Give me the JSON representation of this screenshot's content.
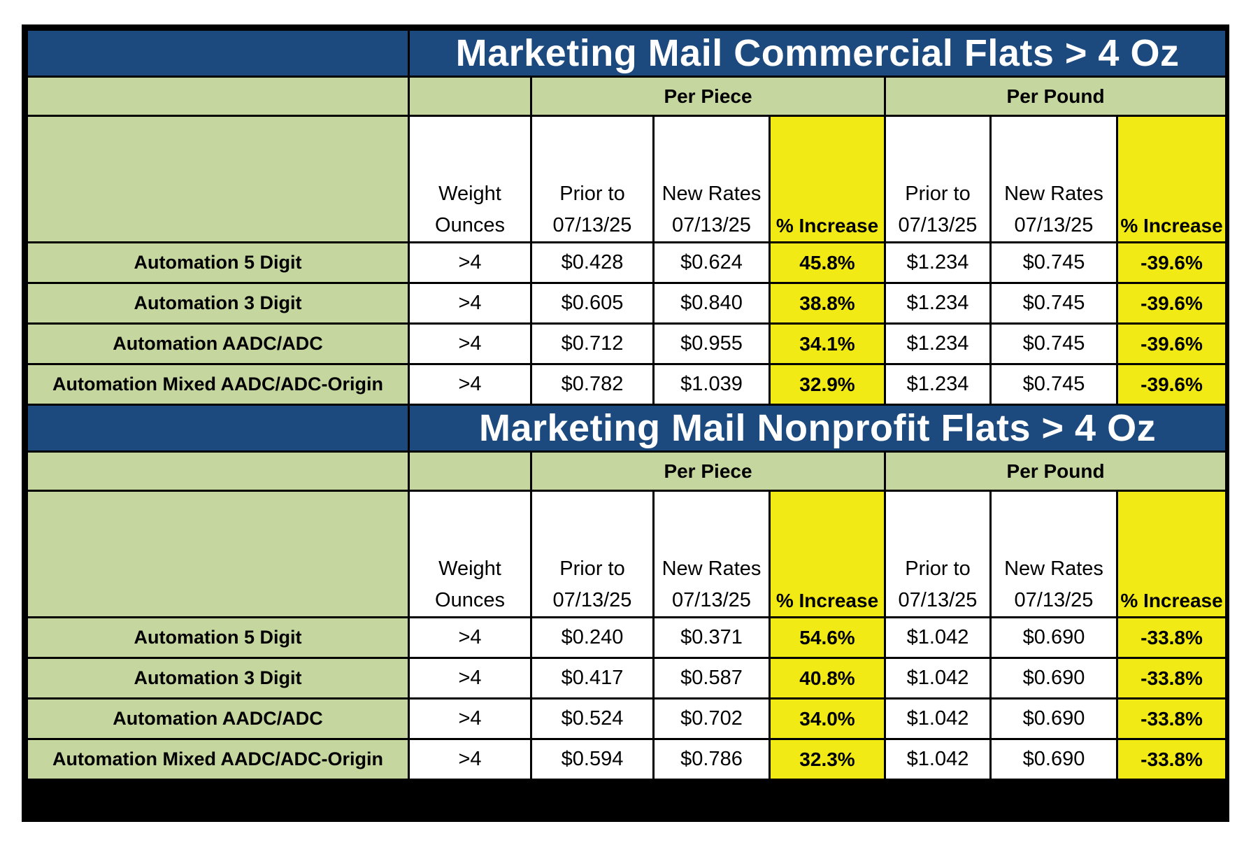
{
  "columns": {
    "weight": [
      "Weight",
      "Ounces"
    ],
    "prior": [
      "Prior to",
      "07/13/25"
    ],
    "new": [
      "New Rates",
      "07/13/25"
    ],
    "pct": "% Increase",
    "per_piece": "Per Piece",
    "per_pound": "Per Pound"
  },
  "sections": [
    {
      "title": "Marketing Mail Commercial Flats > 4 Oz",
      "rows": [
        {
          "label": "Automation 5 Digit",
          "weight": ">4",
          "piece_prior": "$0.428",
          "piece_new": "$0.624",
          "piece_pct": "45.8%",
          "pound_prior": "$1.234",
          "pound_new": "$0.745",
          "pound_pct": "-39.6%"
        },
        {
          "label": "Automation 3 Digit",
          "weight": ">4",
          "piece_prior": "$0.605",
          "piece_new": "$0.840",
          "piece_pct": "38.8%",
          "pound_prior": "$1.234",
          "pound_new": "$0.745",
          "pound_pct": "-39.6%"
        },
        {
          "label": "Automation AADC/ADC",
          "weight": ">4",
          "piece_prior": "$0.712",
          "piece_new": "$0.955",
          "piece_pct": "34.1%",
          "pound_prior": "$1.234",
          "pound_new": "$0.745",
          "pound_pct": "-39.6%"
        },
        {
          "label": "Automation Mixed AADC/ADC-Origin",
          "weight": ">4",
          "piece_prior": "$0.782",
          "piece_new": "$1.039",
          "piece_pct": "32.9%",
          "pound_prior": "$1.234",
          "pound_new": "$0.745",
          "pound_pct": "-39.6%"
        }
      ]
    },
    {
      "title": "Marketing Mail Nonprofit Flats > 4 Oz",
      "rows": [
        {
          "label": "Automation 5 Digit",
          "weight": ">4",
          "piece_prior": "$0.240",
          "piece_new": "$0.371",
          "piece_pct": "54.6%",
          "pound_prior": "$1.042",
          "pound_new": "$0.690",
          "pound_pct": "-33.8%"
        },
        {
          "label": "Automation 3 Digit",
          "weight": ">4",
          "piece_prior": "$0.417",
          "piece_new": "$0.587",
          "piece_pct": "40.8%",
          "pound_prior": "$1.042",
          "pound_new": "$0.690",
          "pound_pct": "-33.8%"
        },
        {
          "label": "Automation AADC/ADC",
          "weight": ">4",
          "piece_prior": "$0.524",
          "piece_new": "$0.702",
          "piece_pct": "34.0%",
          "pound_prior": "$1.042",
          "pound_new": "$0.690",
          "pound_pct": "-33.8%"
        },
        {
          "label": "Automation Mixed AADC/ADC-Origin",
          "weight": ">4",
          "piece_prior": "$0.594",
          "piece_new": "$0.786",
          "piece_pct": "32.3%",
          "pound_prior": "$1.042",
          "pound_new": "$0.690",
          "pound_pct": "-33.8%"
        }
      ]
    }
  ],
  "colors": {
    "title_bg": "#1c4a7e",
    "label_bg": "#c5d69e",
    "highlight": "#f2ea14",
    "border": "#000000"
  }
}
